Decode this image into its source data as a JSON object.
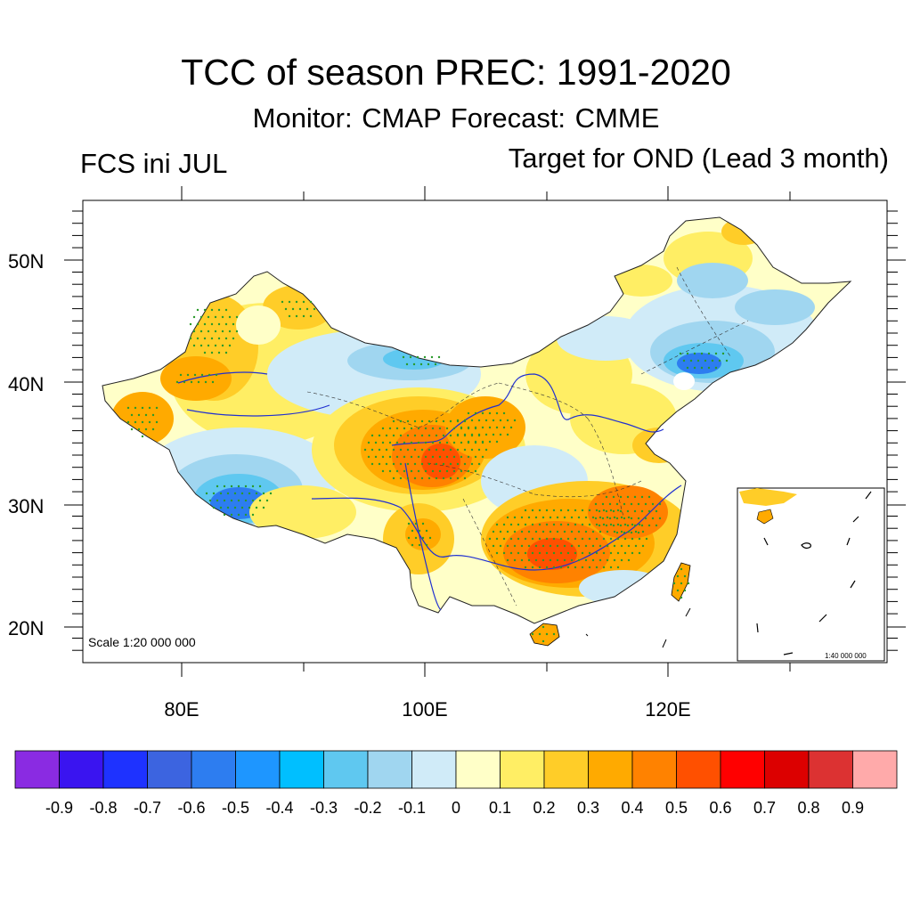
{
  "title": "TCC of season PREC: 1991-2020",
  "subtitle": "Monitor: CMAP   Forecast: CMME",
  "left_label": "FCS ini JUL",
  "right_label": "Target for OND (Lead 3 month)",
  "map": {
    "lat_labels": [
      "50N",
      "40N",
      "30N",
      "20N"
    ],
    "lon_labels": [
      "80E",
      "100E",
      "120E"
    ],
    "scale_main": "Scale 1:20 000 000",
    "scale_inset": "1:40 000 000"
  },
  "colorbar": {
    "labels": [
      "-0.9",
      "-0.8",
      "-0.7",
      "-0.6",
      "-0.5",
      "-0.4",
      "-0.3",
      "-0.2",
      "-0.1",
      "0",
      "0.1",
      "0.2",
      "0.3",
      "0.4",
      "0.5",
      "0.6",
      "0.7",
      "0.8",
      "0.9"
    ],
    "colors": [
      "#8a2be2",
      "#3a14f0",
      "#1e32ff",
      "#3c64e0",
      "#2d7df0",
      "#1e96ff",
      "#00bfff",
      "#5fc8f0",
      "#a0d6f0",
      "#d0ebf8",
      "#ffffc8",
      "#ffee64",
      "#ffcd28",
      "#ffaa00",
      "#ff8200",
      "#ff5000",
      "#ff0000",
      "#dc0000",
      "#dc3232",
      "#ffaaaa"
    ]
  }
}
